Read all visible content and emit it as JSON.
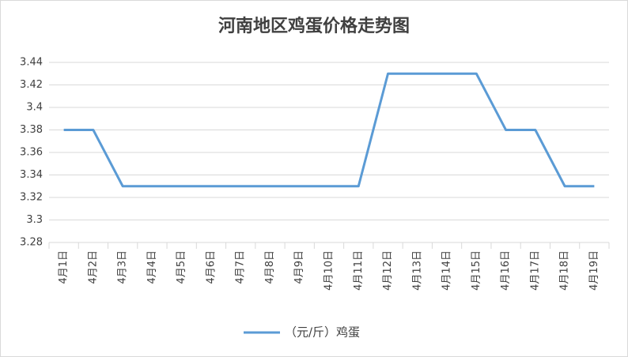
{
  "chart_data": {
    "type": "line",
    "title": "河南地区鸡蛋价格走势图",
    "categories": [
      "4月1日",
      "4月2日",
      "4月3日",
      "4月4日",
      "4月5日",
      "4月6日",
      "4月7日",
      "4月8日",
      "4月9日",
      "4月10日",
      "4月11日",
      "4月12日",
      "4月13日",
      "4月14日",
      "4月15日",
      "4月16日",
      "4月17日",
      "4月18日",
      "4月19日"
    ],
    "series": [
      {
        "name": "（元/斤）鸡蛋",
        "color": "#5b9bd5",
        "values": [
          3.38,
          3.38,
          3.33,
          3.33,
          3.33,
          3.33,
          3.33,
          3.33,
          3.33,
          3.33,
          3.33,
          3.43,
          3.43,
          3.43,
          3.43,
          3.38,
          3.38,
          3.33,
          3.33
        ]
      }
    ],
    "ylim": [
      3.28,
      3.44
    ],
    "yticks": [
      3.28,
      3.3,
      3.32,
      3.34,
      3.36,
      3.38,
      3.4,
      3.42,
      3.44
    ],
    "grid": true,
    "legend": "bottom"
  }
}
